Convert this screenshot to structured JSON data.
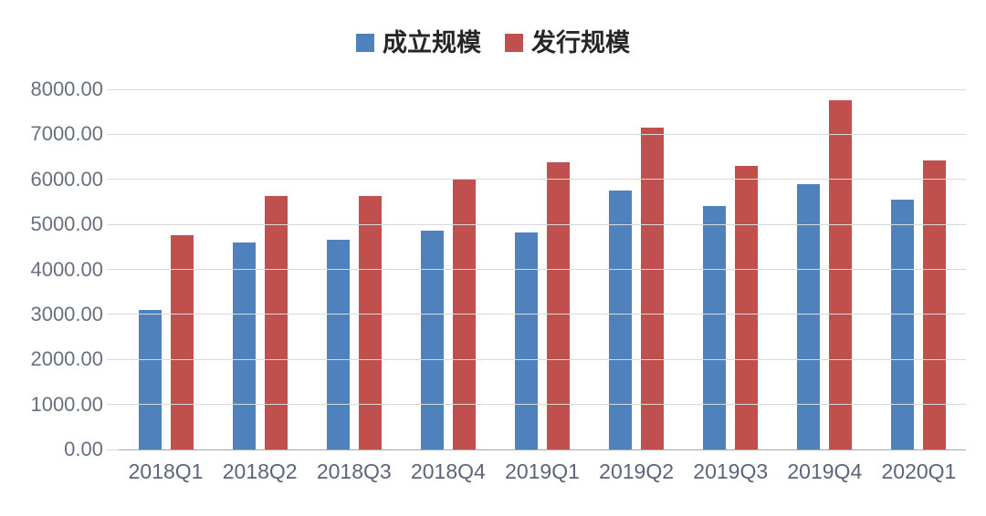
{
  "figure": {
    "background_color": "#ffffff"
  },
  "chart_data": {
    "type": "bar",
    "title": "",
    "categories": [
      "2018Q1",
      "2018Q2",
      "2018Q3",
      "2018Q4",
      "2019Q1",
      "2019Q2",
      "2019Q3",
      "2019Q4",
      "2020Q1"
    ],
    "series": [
      {
        "name": "成立规模",
        "color": "#4f81bd",
        "values": [
          3100,
          4600,
          4650,
          4870,
          4830,
          5760,
          5400,
          5890,
          5540
        ]
      },
      {
        "name": "发行规模",
        "color": "#c0504d",
        "values": [
          4760,
          5630,
          5640,
          6020,
          6380,
          7150,
          6300,
          7760,
          6430
        ]
      }
    ],
    "xlabel": "",
    "ylabel": "",
    "ylim": [
      0,
      8000
    ],
    "ytick_step": 1000,
    "ytick_labels": [
      "0.00",
      "1000.00",
      "2000.00",
      "3000.00",
      "4000.00",
      "5000.00",
      "6000.00",
      "7000.00",
      "8000.00"
    ],
    "grid": true,
    "gridline_color": "#d9d9d9",
    "axis_line_color": "#a6a6a6",
    "legend_position": "top",
    "legend_text_color": "#262626",
    "tick_label_color": "#5b6478"
  }
}
